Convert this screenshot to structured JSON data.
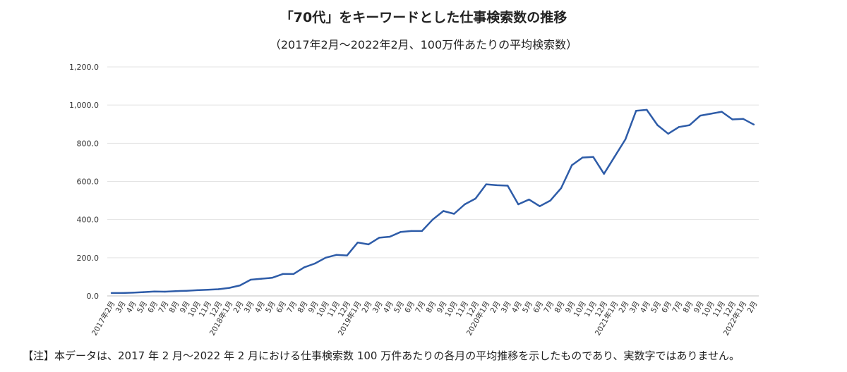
{
  "chart_data": {
    "type": "line",
    "title": "「70代」をキーワードとした仕事検索数の推移",
    "subtitle": "（2017年2月〜2022年2月、100万件あたりの平均検索数）",
    "xlabel": "",
    "ylabel": "",
    "ylim": [
      0,
      1200
    ],
    "y_ticks": [
      "0.0",
      "200.0",
      "400.0",
      "600.0",
      "800.0",
      "1,000.0",
      "1,200.0"
    ],
    "grid": true,
    "legend": "none",
    "line_color": "#2e5ca8",
    "categories": [
      "2017年2月",
      "3月",
      "4月",
      "5月",
      "6月",
      "7月",
      "8月",
      "9月",
      "10月",
      "11月",
      "12月",
      "2018年1月",
      "2月",
      "3月",
      "4月",
      "5月",
      "6月",
      "7月",
      "8月",
      "9月",
      "10月",
      "11月",
      "12月",
      "2019年1月",
      "2月",
      "3月",
      "4月",
      "5月",
      "6月",
      "7月",
      "8月",
      "9月",
      "10月",
      "11月",
      "12月",
      "2020年1月",
      "2月",
      "3月",
      "4月",
      "5月",
      "6月",
      "7月",
      "8月",
      "9月",
      "10月",
      "11月",
      "12月",
      "2021年1月",
      "2月",
      "3月",
      "4月",
      "5月",
      "6月",
      "7月",
      "8月",
      "9月",
      "10月",
      "11月",
      "12月",
      "2022年1月",
      "2月"
    ],
    "series": [
      {
        "values": [
          15,
          15,
          17,
          20,
          23,
          22,
          25,
          27,
          30,
          32,
          35,
          42,
          55,
          85,
          90,
          95,
          115,
          115,
          150,
          170,
          200,
          215,
          212,
          280,
          270,
          305,
          310,
          335,
          340,
          340,
          400,
          445,
          430,
          480,
          510,
          585,
          580,
          578,
          480,
          505,
          470,
          500,
          565,
          685,
          725,
          728,
          640,
          730,
          820,
          970,
          975,
          895,
          850,
          885,
          895,
          945,
          955,
          965,
          925,
          928,
          898
        ]
      }
    ]
  },
  "footnote": "【注】本データは、2017 年 2 月〜2022 年 2 月における仕事検索数 100 万件あたりの各月の平均推移を示したものであり、実数字ではありません。"
}
